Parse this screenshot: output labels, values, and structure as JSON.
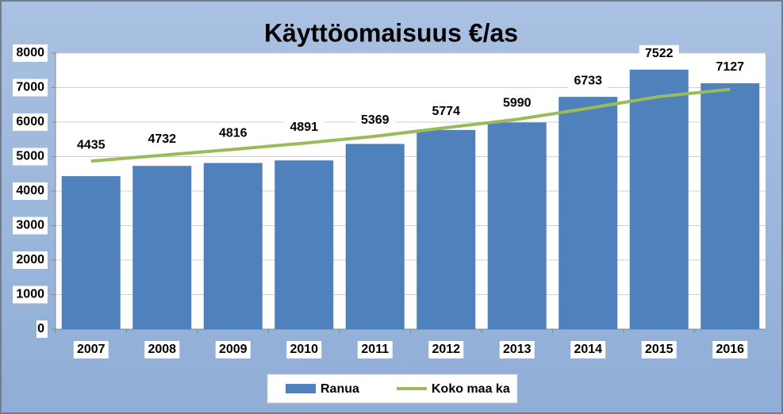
{
  "chart_data": {
    "type": "bar",
    "title": "Käyttöomaisuus €/as",
    "categories": [
      "2007",
      "2008",
      "2009",
      "2010",
      "2011",
      "2012",
      "2013",
      "2014",
      "2015",
      "2016"
    ],
    "series": [
      {
        "name": "Ranua",
        "type": "bar",
        "color": "#4f81bd",
        "values": [
          4435,
          4732,
          4816,
          4891,
          5369,
          5774,
          5990,
          6733,
          7522,
          7127
        ]
      },
      {
        "name": "Koko maa ka",
        "type": "line",
        "color": "#9bbb59",
        "values": [
          4870,
          5040,
          5210,
          5390,
          5590,
          5840,
          6080,
          6400,
          6740,
          6950
        ]
      }
    ],
    "ylim": [
      0,
      8000
    ],
    "yticks": [
      0,
      1000,
      2000,
      3000,
      4000,
      5000,
      6000,
      7000,
      8000
    ],
    "grid": true,
    "legend": "bottom"
  }
}
